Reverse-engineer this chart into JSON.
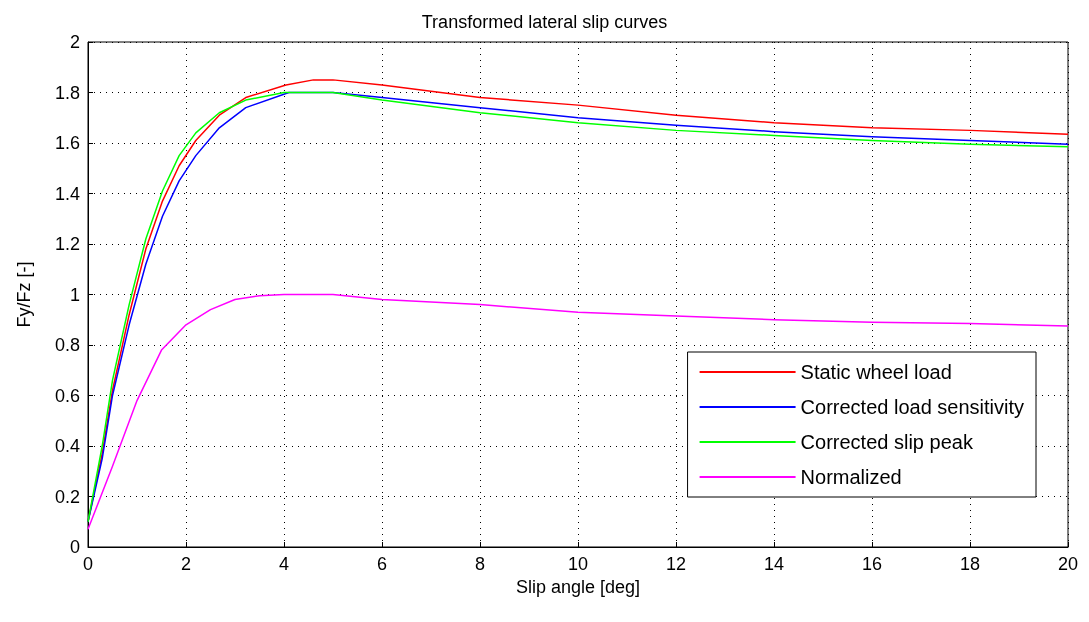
{
  "chart_data": {
    "type": "line",
    "title": "Transformed lateral slip curves",
    "xlabel": "Slip angle [deg]",
    "ylabel": "Fy/Fz [-]",
    "xlim": [
      0,
      20
    ],
    "xticks": [
      0,
      2,
      4,
      6,
      8,
      10,
      12,
      14,
      16,
      18,
      20
    ],
    "ylim": [
      0,
      2
    ],
    "yticks": [
      0,
      0.2,
      0.4,
      0.6,
      0.8,
      1,
      1.2,
      1.4,
      1.6,
      1.8,
      2
    ],
    "grid": true,
    "legend": "bottom right",
    "marker": "none",
    "line_style": "solid",
    "series": [
      {
        "name": "Static wheel load",
        "color": "#ff0000",
        "x": [
          0,
          0.29,
          0.5,
          0.84,
          1.18,
          1.52,
          1.86,
          2.2,
          2.68,
          3.22,
          4.04,
          4.6,
          5,
          6,
          8,
          10,
          12,
          14,
          16,
          18,
          20
        ],
        "values": [
          0.1,
          0.37,
          0.62,
          0.92,
          1.18,
          1.37,
          1.51,
          1.61,
          1.71,
          1.78,
          1.83,
          1.85,
          1.85,
          1.83,
          1.78,
          1.75,
          1.71,
          1.68,
          1.66,
          1.65,
          1.635
        ]
      },
      {
        "name": "Corrected load sensitivity",
        "color": "#0000ff",
        "x": [
          0,
          0.29,
          0.5,
          0.84,
          1.18,
          1.52,
          1.86,
          2.2,
          2.68,
          3.22,
          4.1,
          5,
          6,
          8,
          10,
          12,
          14,
          16,
          18,
          20
        ],
        "values": [
          0.1,
          0.35,
          0.6,
          0.88,
          1.12,
          1.31,
          1.45,
          1.55,
          1.66,
          1.74,
          1.8,
          1.8,
          1.78,
          1.74,
          1.7,
          1.67,
          1.645,
          1.625,
          1.61,
          1.595
        ]
      },
      {
        "name": "Corrected slip peak",
        "color": "#00ff00",
        "x": [
          0,
          0.29,
          0.5,
          0.84,
          1.18,
          1.52,
          1.86,
          2.2,
          2.68,
          3.22,
          4,
          5,
          6,
          8,
          10,
          12,
          14,
          16,
          18,
          20
        ],
        "values": [
          0.1,
          0.4,
          0.66,
          0.96,
          1.22,
          1.41,
          1.55,
          1.64,
          1.72,
          1.77,
          1.8,
          1.8,
          1.77,
          1.72,
          1.68,
          1.65,
          1.63,
          1.61,
          1.595,
          1.585
        ]
      },
      {
        "name": "Normalized",
        "color": "#ff00ff",
        "x": [
          0,
          0.5,
          1,
          1.5,
          2,
          2.5,
          3,
          3.5,
          4,
          5,
          6,
          8,
          10,
          12,
          14,
          16,
          18,
          20
        ],
        "values": [
          0.07,
          0.32,
          0.58,
          0.78,
          0.88,
          0.94,
          0.98,
          0.995,
          1,
          1,
          0.98,
          0.96,
          0.93,
          0.915,
          0.9,
          0.89,
          0.885,
          0.875
        ]
      }
    ]
  }
}
